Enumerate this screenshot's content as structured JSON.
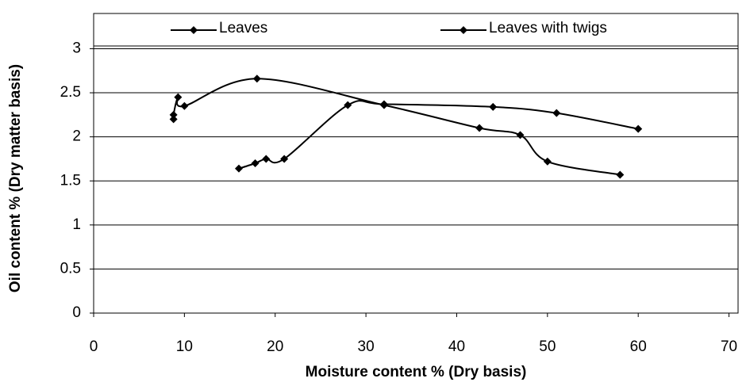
{
  "chart_data": {
    "type": "line",
    "xlabel": "Moisture content % (Dry basis)",
    "ylabel": "Oil content % (Dry matter basis)",
    "xlim": [
      0,
      71
    ],
    "ylim": [
      0,
      3.4
    ],
    "xticks": [
      0,
      10,
      20,
      30,
      40,
      50,
      60,
      70
    ],
    "yticks": [
      0,
      0.5,
      1,
      1.5,
      2,
      2.5,
      3
    ],
    "grid": true,
    "legend": "top",
    "series": [
      {
        "name": "Leaves",
        "color": "#000000",
        "x": [
          8.8,
          8.8,
          9.3,
          10,
          18,
          32,
          42.5,
          47,
          50,
          58
        ],
        "values": [
          2.2,
          2.25,
          2.45,
          2.35,
          2.66,
          2.36,
          2.1,
          2.02,
          1.72,
          1.57
        ]
      },
      {
        "name": "Leaves with twigs",
        "color": "#000000",
        "x": [
          16,
          17.8,
          19,
          21,
          28,
          32,
          44,
          51,
          60
        ],
        "values": [
          1.64,
          1.7,
          1.75,
          1.75,
          2.36,
          2.37,
          2.34,
          2.27,
          2.09
        ]
      }
    ]
  }
}
